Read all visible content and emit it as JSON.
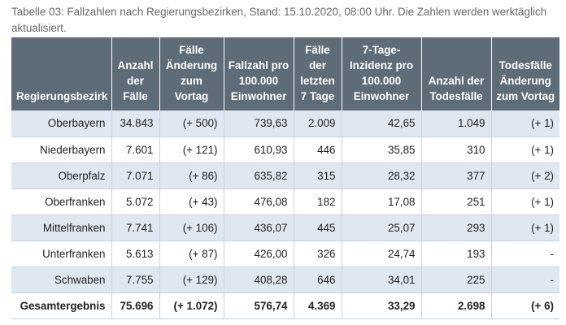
{
  "caption": "Tabelle 03: Fallzahlen nach Regierungsbezirken, Stand: 15.10.2020, 08:00 Uhr. Die Zahlen werden werktäglich aktualisiert.",
  "headers": [
    "Regierungsbezirk",
    "Anzahl der Fälle",
    "Fälle Änderung zum Vortag",
    "Fallzahl pro 100.000 Einwohner",
    "Fälle der letzten 7 Tage",
    "7-Tage-Inzidenz pro 100.000 Einwohner",
    "Anzahl der Todesfälle",
    "Todesfälle Änderung zum Vortag"
  ],
  "rows": [
    [
      "Oberbayern",
      "34.843",
      "(+ 500)",
      "739,63",
      "2.009",
      "42,65",
      "1.049",
      "(+ 1)"
    ],
    [
      "Niederbayern",
      "7.601",
      "(+ 121)",
      "610,93",
      "446",
      "35,85",
      "310",
      "(+ 1)"
    ],
    [
      "Oberpfalz",
      "7.071",
      "(+ 86)",
      "635,82",
      "315",
      "28,32",
      "377",
      "(+ 2)"
    ],
    [
      "Oberfranken",
      "5.072",
      "(+ 43)",
      "476,08",
      "182",
      "17,08",
      "251",
      "(+ 1)"
    ],
    [
      "Mittelfranken",
      "7.741",
      "(+ 106)",
      "436,07",
      "445",
      "25,07",
      "293",
      "(+ 1)"
    ],
    [
      "Unterfranken",
      "5.613",
      "(+ 87)",
      "426,00",
      "326",
      "24,74",
      "193",
      "-"
    ],
    [
      "Schwaben",
      "7.755",
      "(+ 129)",
      "408,28",
      "646",
      "34,01",
      "225",
      "-"
    ],
    [
      "Gesamtergebnis",
      "75.696",
      "(+ 1.072)",
      "576,74",
      "4.369",
      "33,29",
      "2.698",
      "(+ 6)"
    ]
  ]
}
